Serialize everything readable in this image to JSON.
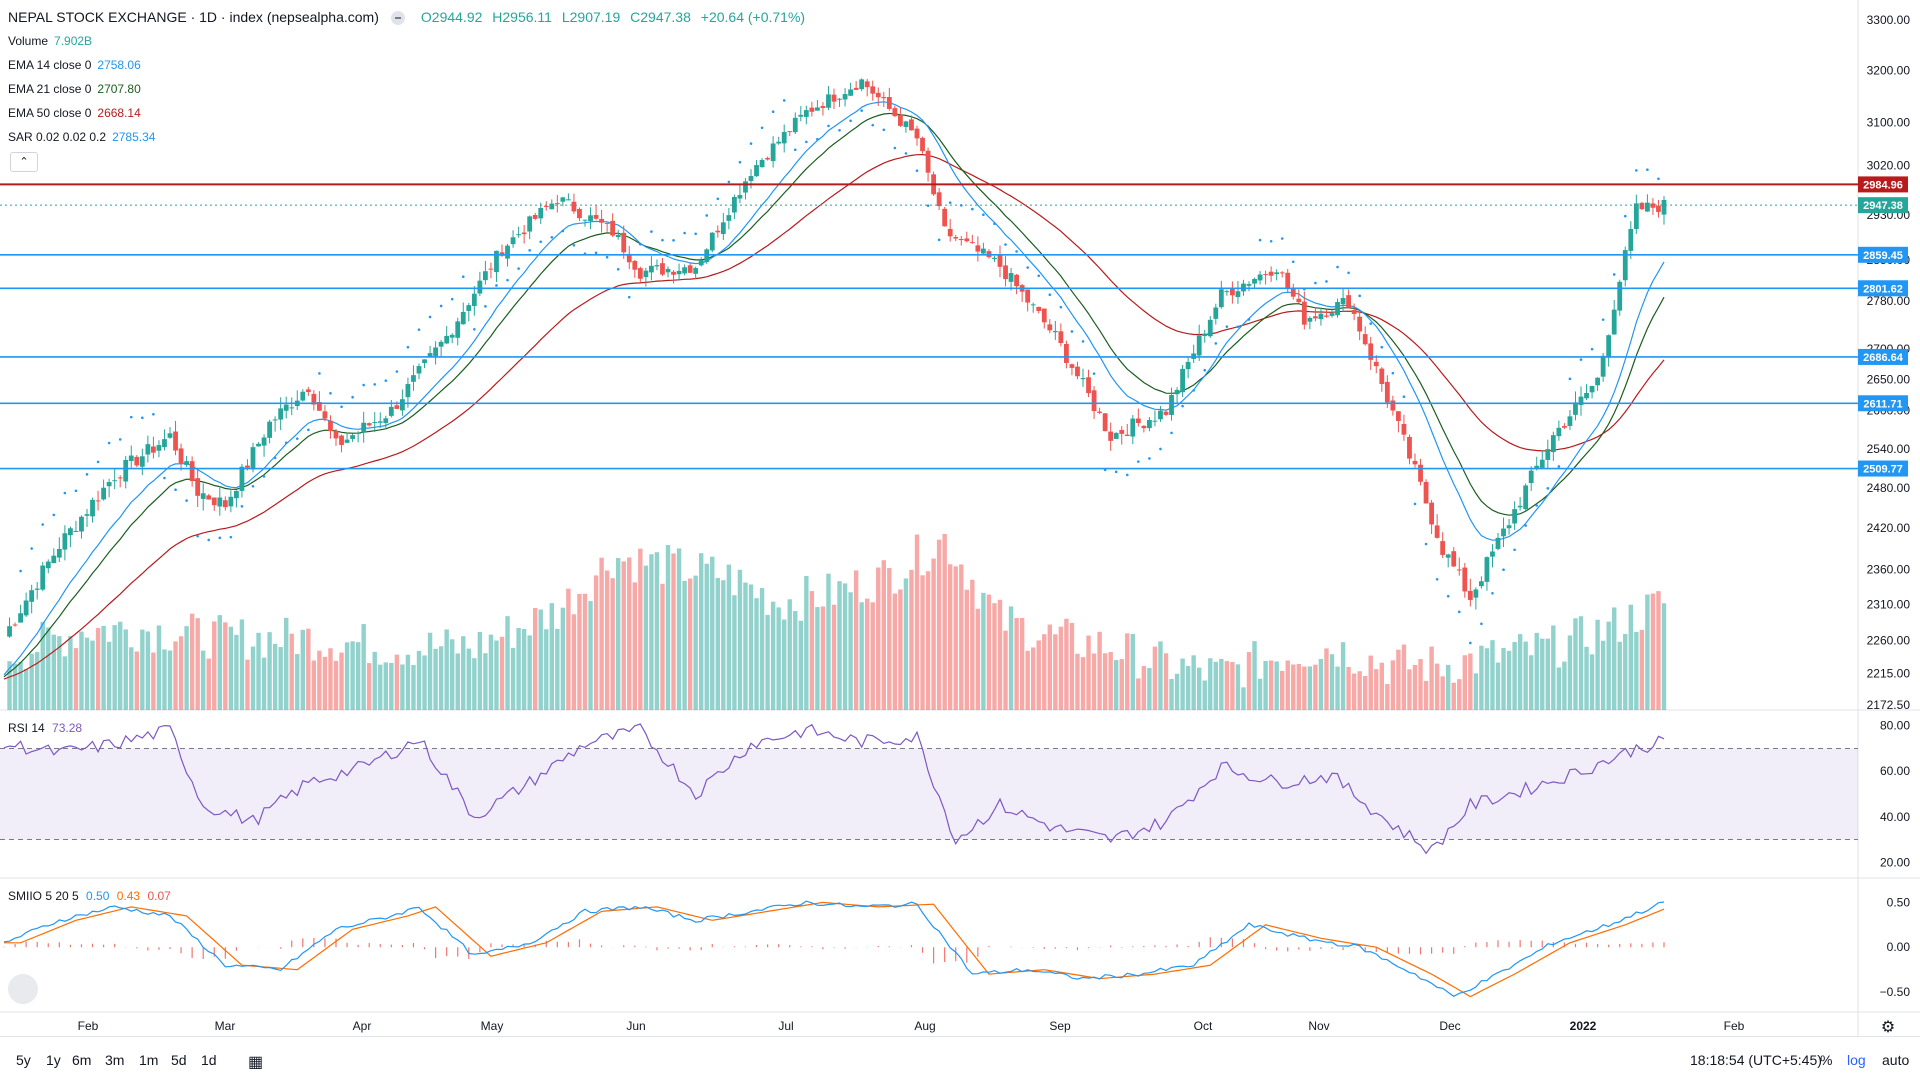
{
  "header": {
    "title": "NEPAL STOCK EXCHANGE · 1D · index (nepsealpha.com)",
    "open": "O2944.92",
    "high": "H2956.11",
    "low": "L2907.19",
    "close": "C2947.38",
    "change": "+20.64 (+0.71%)"
  },
  "indicators": [
    {
      "label": "Volume",
      "value": "7.902B",
      "color": "#26a69a"
    },
    {
      "label": "EMA 14 close 0",
      "value": "2758.06",
      "color": "#2196f3"
    },
    {
      "label": "EMA 21 close 0",
      "value": "2707.80",
      "color": "#1b5e20"
    },
    {
      "label": "EMA 50 close 0",
      "value": "2668.14",
      "color": "#b71c1c"
    },
    {
      "label": "SAR 0.02 0.02 0.2",
      "value": "2785.34",
      "color": "#2196f3"
    }
  ],
  "rsi_legend": {
    "label": "RSI 14",
    "value": "73.28",
    "color": "#7e57c2"
  },
  "smi_legend": {
    "label": "SMIIO 5 20 5",
    "v1": "0.50",
    "v2": "0.43",
    "v3": "0.07",
    "c1": "#2196f3",
    "c2": "#ff6d00",
    "c3": "#ef5350"
  },
  "collapse_icon": "chevron-up-icon",
  "toolbar": {
    "ranges": [
      "5y",
      "1y",
      "6m",
      "3m",
      "1m",
      "5d",
      "1d"
    ],
    "calendar_icon": "calendar-range-icon",
    "time": "18:18:54 (UTC+5:45)",
    "percent": "%",
    "log": "log",
    "auto": "auto"
  },
  "colors": {
    "up": "#26a69a",
    "down": "#ef5350",
    "resistance": "#b71c1c",
    "support": "#2196f3",
    "rsi": "#7e57c2"
  },
  "chart_data": [
    {
      "type": "candlestick",
      "title": "NEPAL STOCK EXCHANGE",
      "x_labels": [
        "Feb",
        "Mar",
        "Apr",
        "May",
        "Jun",
        "Jul",
        "Aug",
        "Sep",
        "Oct",
        "Nov",
        "Dec",
        "2022",
        "Feb"
      ],
      "y_ticks": [
        2172.5,
        2215,
        2260,
        2310,
        2360,
        2420,
        2480,
        2540,
        2600,
        2650,
        2700,
        2780,
        2850,
        2930,
        3020,
        3100,
        3200,
        3300
      ],
      "y_tick_labels": [
        "2172.50",
        "2215.00",
        "2260.00",
        "2310.00",
        "2360.00",
        "2420.00",
        "2480.00",
        "2540.00",
        "2600.00",
        "2650.00",
        "2700.00",
        "2780.00",
        "2850.00",
        "2930.00",
        "3020.00",
        "3100.00",
        "3200.00",
        "3300.00"
      ],
      "scale": "log",
      "price_marks": [
        {
          "value": 2984.96,
          "label": "2984.96",
          "color": "#b71c1c",
          "kind": "line"
        },
        {
          "value": 2947.38,
          "label": "2947.38",
          "color": "#26a69a",
          "kind": "last"
        },
        {
          "value": 2859.45,
          "label": "2859.45",
          "color": "#2196f3",
          "kind": "line"
        },
        {
          "value": 2801.62,
          "label": "2801.62",
          "color": "#2196f3",
          "kind": "line"
        },
        {
          "value": 2686.64,
          "label": "2686.64",
          "color": "#2196f3",
          "kind": "line"
        },
        {
          "value": 2611.71,
          "label": "2611.71",
          "color": "#2196f3",
          "kind": "line"
        },
        {
          "value": 2509.77,
          "label": "2509.77",
          "color": "#2196f3",
          "kind": "line"
        }
      ],
      "close_anchors": [
        [
          0,
          2265
        ],
        [
          10,
          2395
        ],
        [
          20,
          2500
        ],
        [
          30,
          2560
        ],
        [
          35,
          2475
        ],
        [
          40,
          2455
        ],
        [
          48,
          2580
        ],
        [
          55,
          2640
        ],
        [
          60,
          2545
        ],
        [
          70,
          2600
        ],
        [
          80,
          2720
        ],
        [
          90,
          2870
        ],
        [
          100,
          2960
        ],
        [
          110,
          2900
        ],
        [
          115,
          2830
        ],
        [
          125,
          2840
        ],
        [
          135,
          3010
        ],
        [
          145,
          3120
        ],
        [
          155,
          3180
        ],
        [
          165,
          3070
        ],
        [
          170,
          2900
        ],
        [
          180,
          2840
        ],
        [
          190,
          2720
        ],
        [
          200,
          2560
        ],
        [
          210,
          2600
        ],
        [
          220,
          2790
        ],
        [
          230,
          2840
        ],
        [
          235,
          2750
        ],
        [
          243,
          2780
        ],
        [
          250,
          2620
        ],
        [
          260,
          2390
        ],
        [
          265,
          2320
        ],
        [
          272,
          2430
        ],
        [
          280,
          2560
        ],
        [
          288,
          2650
        ],
        [
          295,
          2940
        ],
        [
          300,
          2947
        ]
      ],
      "volume_anchors": [
        [
          0,
          0.3
        ],
        [
          15,
          0.45
        ],
        [
          25,
          0.45
        ],
        [
          40,
          0.4
        ],
        [
          55,
          0.4
        ],
        [
          70,
          0.35
        ],
        [
          85,
          0.35
        ],
        [
          100,
          0.55
        ],
        [
          110,
          0.85
        ],
        [
          120,
          0.8
        ],
        [
          130,
          0.75
        ],
        [
          140,
          0.6
        ],
        [
          150,
          0.65
        ],
        [
          160,
          0.75
        ],
        [
          170,
          0.95
        ],
        [
          180,
          0.5
        ],
        [
          190,
          0.4
        ],
        [
          200,
          0.35
        ],
        [
          210,
          0.25
        ],
        [
          220,
          0.2
        ],
        [
          230,
          0.3
        ],
        [
          240,
          0.35
        ],
        [
          250,
          0.25
        ],
        [
          260,
          0.25
        ],
        [
          270,
          0.3
        ],
        [
          280,
          0.35
        ],
        [
          290,
          0.45
        ],
        [
          300,
          0.6
        ]
      ]
    },
    {
      "type": "line",
      "title": "RSI 14",
      "y_tick_labels": [
        "80.00",
        "60.00",
        "40.00",
        "20.00"
      ],
      "y_ticks": [
        80,
        60,
        40,
        20
      ],
      "bands": [
        70,
        30
      ],
      "anchors": [
        [
          0,
          72
        ],
        [
          10,
          68
        ],
        [
          20,
          72
        ],
        [
          30,
          78
        ],
        [
          36,
          45
        ],
        [
          45,
          38
        ],
        [
          55,
          55
        ],
        [
          65,
          62
        ],
        [
          75,
          74
        ],
        [
          85,
          40
        ],
        [
          95,
          55
        ],
        [
          105,
          72
        ],
        [
          115,
          78
        ],
        [
          125,
          50
        ],
        [
          135,
          72
        ],
        [
          145,
          78
        ],
        [
          155,
          73
        ],
        [
          165,
          75
        ],
        [
          172,
          30
        ],
        [
          180,
          45
        ],
        [
          190,
          35
        ],
        [
          200,
          30
        ],
        [
          210,
          38
        ],
        [
          220,
          62
        ],
        [
          230,
          55
        ],
        [
          240,
          58
        ],
        [
          250,
          38
        ],
        [
          258,
          25
        ],
        [
          265,
          45
        ],
        [
          275,
          52
        ],
        [
          285,
          60
        ],
        [
          295,
          70
        ],
        [
          300,
          73
        ]
      ]
    },
    {
      "type": "line",
      "title": "SMIIO 5 20 5",
      "y_tick_labels": [
        "0.50",
        "0.00",
        "−0.50"
      ],
      "y_ticks": [
        0.5,
        0.0,
        -0.5
      ],
      "anchors": [
        [
          0,
          0.05
        ],
        [
          10,
          0.3
        ],
        [
          20,
          0.45
        ],
        [
          30,
          0.35
        ],
        [
          40,
          -0.2
        ],
        [
          50,
          -0.25
        ],
        [
          60,
          0.2
        ],
        [
          70,
          0.35
        ],
        [
          75,
          0.45
        ],
        [
          85,
          -0.1
        ],
        [
          95,
          0.05
        ],
        [
          105,
          0.4
        ],
        [
          115,
          0.45
        ],
        [
          125,
          0.3
        ],
        [
          135,
          0.4
        ],
        [
          145,
          0.5
        ],
        [
          155,
          0.45
        ],
        [
          165,
          0.48
        ],
        [
          175,
          -0.3
        ],
        [
          185,
          -0.25
        ],
        [
          195,
          -0.35
        ],
        [
          205,
          -0.3
        ],
        [
          215,
          -0.2
        ],
        [
          225,
          0.25
        ],
        [
          235,
          0.1
        ],
        [
          245,
          0.0
        ],
        [
          255,
          -0.3
        ],
        [
          262,
          -0.55
        ],
        [
          270,
          -0.3
        ],
        [
          280,
          0.05
        ],
        [
          290,
          0.25
        ],
        [
          300,
          0.5
        ]
      ]
    }
  ]
}
